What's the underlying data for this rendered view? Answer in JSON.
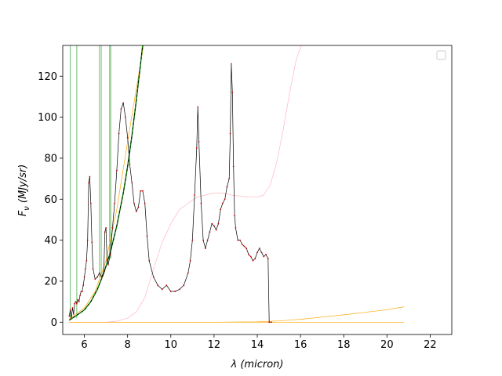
{
  "chart_data": {
    "type": "line",
    "title": "",
    "xlabel": "λ (micron)",
    "ylabel": "F_ν (MJy/sr)",
    "xlabel_parts": {
      "sym": "λ",
      "rest": " (micron)"
    },
    "ylabel_parts": {
      "sym": "F",
      "sub": "ν",
      "rest": " (MJy/sr)"
    },
    "xlim": [
      5.0,
      23.0
    ],
    "ylim": [
      -6,
      135
    ],
    "xticks": [
      6,
      8,
      10,
      12,
      14,
      16,
      18,
      20,
      22
    ],
    "yticks": [
      0,
      20,
      40,
      60,
      80,
      100,
      120
    ],
    "grid": false,
    "legend": {
      "placement": "top-right",
      "entries": []
    },
    "colors": {
      "spectrum": "#000000",
      "points": "#cc0000",
      "fit": "#008000",
      "fit_dash": "#000000",
      "pink": "#ffb6c1",
      "orange": "#ffa500",
      "vlines": "#4caf50"
    },
    "series": [
      {
        "role": "spectrum",
        "x": [
          5.3,
          5.35,
          5.4,
          5.45,
          5.5,
          5.55,
          5.6,
          5.65,
          5.7,
          5.75,
          5.8,
          5.85,
          5.9,
          5.95,
          6.0,
          6.05,
          6.1,
          6.15,
          6.2,
          6.25,
          6.3,
          6.35,
          6.4,
          6.5,
          6.6,
          6.7,
          6.8,
          6.9,
          6.95,
          7.0,
          7.05,
          7.1,
          7.2,
          7.3,
          7.4,
          7.5,
          7.6,
          7.7,
          7.8,
          7.9,
          8.0,
          8.1,
          8.2,
          8.3,
          8.4,
          8.5,
          8.6,
          8.7,
          8.8,
          8.9,
          9.0,
          9.2,
          9.4,
          9.6,
          9.8,
          10.0,
          10.2,
          10.4,
          10.6,
          10.8,
          10.9,
          11.0,
          11.1,
          11.2,
          11.25,
          11.3,
          11.4,
          11.5,
          11.6,
          11.7,
          11.8,
          11.9,
          12.0,
          12.1,
          12.2,
          12.3,
          12.4,
          12.5,
          12.6,
          12.7,
          12.75,
          12.8,
          12.85,
          12.9,
          12.95,
          13.0,
          13.1,
          13.2,
          13.3,
          13.4,
          13.5,
          13.6,
          13.7,
          13.8,
          13.9,
          14.0,
          14.1,
          14.2,
          14.3,
          14.4,
          14.5,
          14.55,
          14.65
        ],
        "y": [
          3,
          6,
          2,
          7,
          4,
          9,
          10,
          9,
          11,
          10,
          13,
          15,
          15,
          18,
          22,
          26,
          30,
          40,
          68,
          71,
          58,
          39,
          26,
          21,
          22,
          24,
          22,
          25,
          44,
          46,
          30,
          28,
          33,
          46,
          58,
          74,
          92,
          104,
          107,
          100,
          90,
          77,
          68,
          58,
          54,
          56,
          64,
          64,
          58,
          42,
          30,
          22,
          18,
          16,
          18,
          15,
          15,
          16,
          18,
          24,
          30,
          40,
          62,
          85,
          105,
          88,
          58,
          40,
          36,
          40,
          44,
          48,
          47,
          45,
          48,
          55,
          58,
          60,
          66,
          70,
          92,
          126,
          112,
          76,
          52,
          46,
          40,
          40,
          38,
          37,
          36,
          33,
          32,
          30,
          31,
          34,
          36,
          34,
          32,
          33,
          31,
          0,
          0
        ]
      },
      {
        "role": "pink",
        "x": [
          5.3,
          6.0,
          7.0,
          7.5,
          8.0,
          8.4,
          8.8,
          9.2,
          9.6,
          10.0,
          10.4,
          10.8,
          11.2,
          11.6,
          12.0,
          12.4,
          12.8,
          13.2,
          13.6,
          14.0,
          14.3,
          14.6,
          14.9,
          15.2,
          15.5,
          15.8,
          16.1
        ],
        "y": [
          0,
          0,
          0,
          0.5,
          2,
          5,
          12,
          26,
          39,
          48,
          55,
          58,
          61,
          62,
          63,
          63,
          62,
          61.5,
          61,
          61,
          62,
          67,
          78,
          94,
          112,
          128,
          137
        ]
      },
      {
        "role": "orange-flat",
        "x": [
          5.3,
          20.8
        ],
        "y": [
          0,
          0
        ]
      },
      {
        "role": "orange-rise",
        "x": [
          5.3,
          8,
          10,
          12,
          14,
          15,
          16,
          17,
          18,
          19,
          20,
          20.8
        ],
        "y": [
          0,
          0,
          0,
          0,
          0.2,
          0.6,
          1.4,
          2.5,
          3.6,
          4.8,
          6.1,
          7.5
        ]
      },
      {
        "role": "orange-steep",
        "x": [
          5.3,
          6.0,
          6.5,
          7.0,
          7.5,
          8.0,
          8.5,
          8.9
        ],
        "y": [
          1.6,
          7,
          15,
          30,
          55,
          88,
          120,
          145
        ]
      },
      {
        "role": "fit",
        "x": [
          5.3,
          5.6,
          6.0,
          6.3,
          6.6,
          6.9,
          7.2,
          7.5,
          7.8,
          8.0,
          8.2,
          8.4,
          8.6,
          8.75
        ],
        "y": [
          1,
          3,
          6,
          10,
          16,
          24,
          34,
          47,
          63,
          76,
          91,
          108,
          126,
          140
        ]
      }
    ],
    "vlines": [
      5.35,
      5.65,
      6.7,
      6.78,
      7.17,
      7.22
    ],
    "vline_ranges": [
      [
        2,
        140
      ],
      [
        2,
        140
      ],
      [
        22,
        140
      ],
      [
        22,
        140
      ],
      [
        31,
        140
      ],
      [
        31,
        140
      ]
    ]
  }
}
